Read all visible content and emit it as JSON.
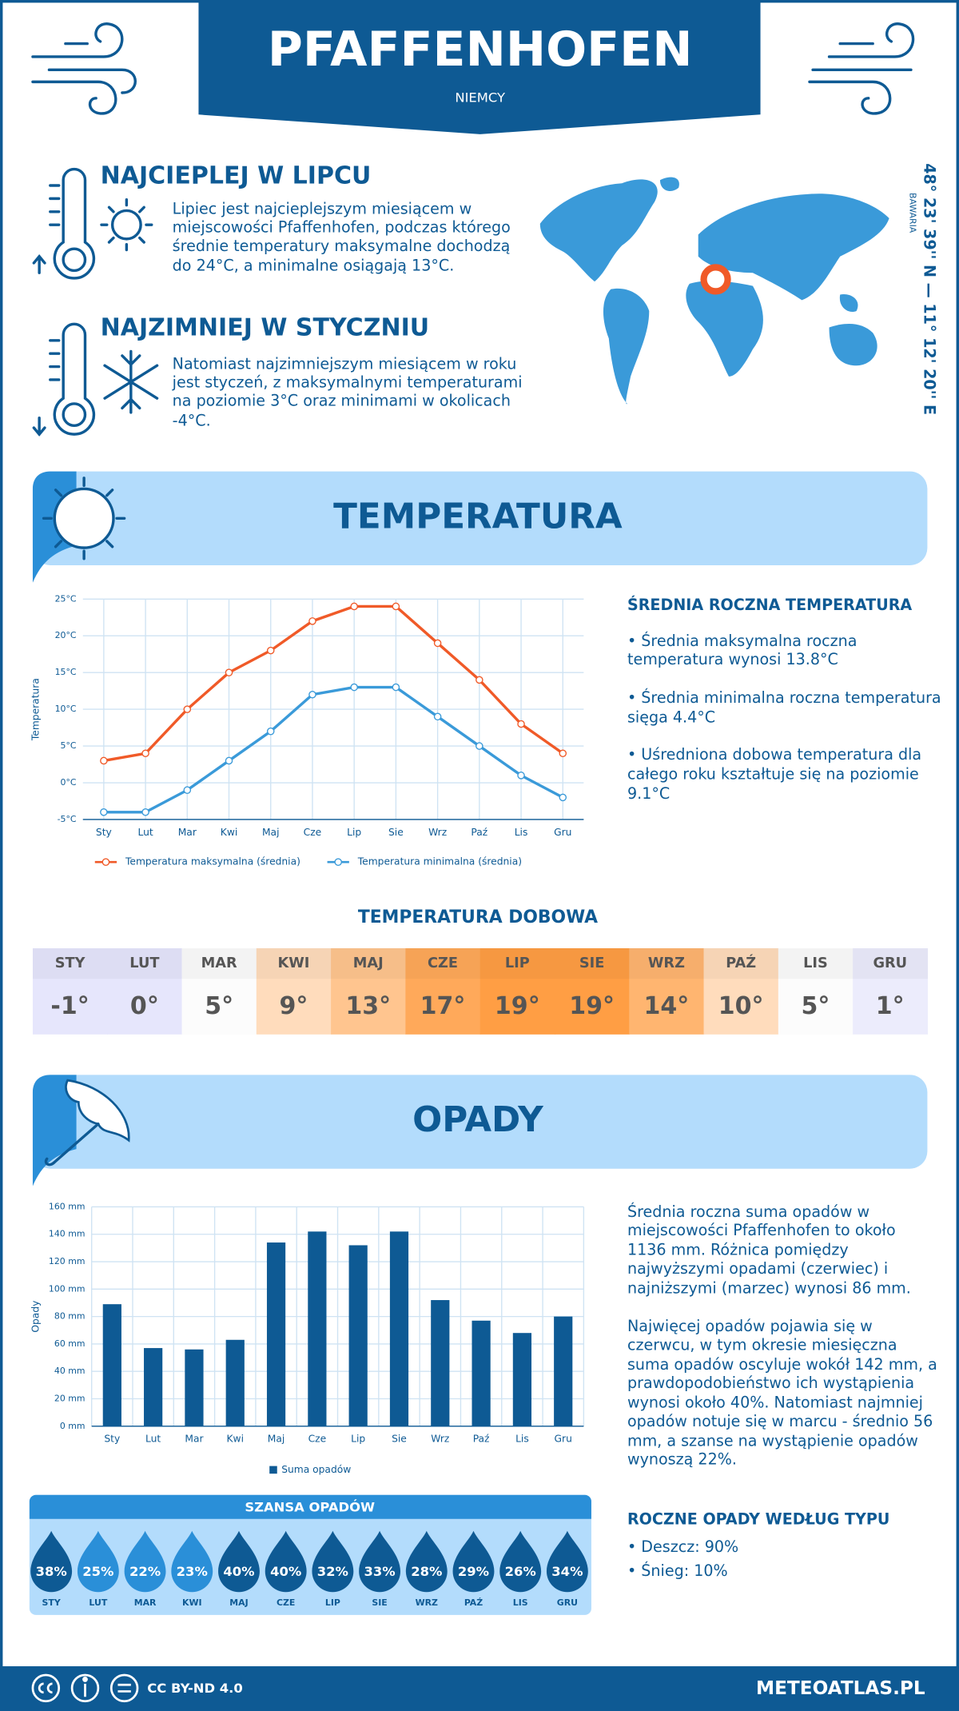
{
  "header": {
    "title": "PFAFFENHOFEN",
    "subtitle": "NIEMCY"
  },
  "warmest": {
    "title": "NAJCIEPLEJ W LIPCU",
    "lines": [
      "Lipiec jest najcieplejszym miesiącem w",
      "miejscowości Pfaffenhofen, podczas którego",
      "średnie temperatury maksymalne dochodzą",
      "do 24°C, a minimalne osiągają 13°C."
    ]
  },
  "coldest": {
    "title": "NAJZIMNIEJ W STYCZNIU",
    "lines": [
      "Natomiast najzimniejszym miesiącem w roku",
      "jest styczeń, z maksymalnymi temperaturami",
      "na poziomie 3°C oraz minimami w okolicach",
      "-4°C."
    ]
  },
  "location": {
    "coordinates": "48° 23' 39'' N — 11° 12' 20'' E",
    "region": "BAWARIA"
  },
  "temperature": {
    "title": "TEMPERATURA",
    "summary": {
      "title": "ŚREDNIA ROCZNA TEMPERATURA",
      "bullets": [
        [
          "• Średnia maksymalna roczna",
          "temperatura wynosi 13.8°C"
        ],
        [
          "• Średnia minimalna roczna temperatura",
          "sięga 4.4°C"
        ],
        [
          "• Uśredniona dobowa temperatura dla",
          "całego roku kształtuje się na poziomie",
          "9.1°C"
        ]
      ]
    }
  },
  "chart_data": [
    {
      "type": "line",
      "y_label": "Temperatura",
      "categories": [
        "Sty",
        "Lut",
        "Mar",
        "Kwi",
        "Maj",
        "Cze",
        "Lip",
        "Sie",
        "Wrz",
        "Paź",
        "Lis",
        "Gru"
      ],
      "series": [
        {
          "name": "Temperatura maksymalna (średnia)",
          "color": "#f05a28",
          "values": [
            3,
            4,
            10,
            15,
            18,
            22,
            24,
            24,
            19,
            14,
            8,
            4
          ]
        },
        {
          "name": "Temperatura minimalna (średnia)",
          "color": "#3a9ad9",
          "values": [
            -4,
            -4,
            -1,
            3,
            7,
            12,
            13,
            13,
            9,
            5,
            1,
            -2
          ]
        }
      ],
      "ylim": [
        -5,
        25
      ],
      "yticks": [
        {
          "value": -5,
          "label": "-5°C"
        },
        {
          "value": 0,
          "label": "0°C"
        },
        {
          "value": 5,
          "label": "5°C"
        },
        {
          "value": 10,
          "label": "10°C"
        },
        {
          "value": 15,
          "label": "15°C"
        },
        {
          "value": 20,
          "label": "20°C"
        },
        {
          "value": 25,
          "label": "25°C"
        }
      ],
      "grid": true
    },
    {
      "type": "bar",
      "y_label": "Opady",
      "categories": [
        "Sty",
        "Lut",
        "Mar",
        "Kwi",
        "Maj",
        "Cze",
        "Lip",
        "Sie",
        "Wrz",
        "Paź",
        "Lis",
        "Gru"
      ],
      "series": [
        {
          "name": "Suma opadów",
          "color": "#0e5a94",
          "values": [
            89,
            57,
            56,
            63,
            134,
            142,
            132,
            142,
            92,
            77,
            68,
            80
          ]
        }
      ],
      "ylim": [
        0,
        160
      ],
      "yticks": [
        {
          "value": 0,
          "label": "0 mm"
        },
        {
          "value": 20,
          "label": "20 mm"
        },
        {
          "value": 40,
          "label": "40 mm"
        },
        {
          "value": 60,
          "label": "60 mm"
        },
        {
          "value": 80,
          "label": "80 mm"
        },
        {
          "value": 100,
          "label": "100 mm"
        },
        {
          "value": 120,
          "label": "120 mm"
        },
        {
          "value": 140,
          "label": "140 mm"
        },
        {
          "value": 160,
          "label": "160 mm"
        }
      ],
      "grid": true
    }
  ],
  "daily_temperature": {
    "title": "TEMPERATURA DOBOWA",
    "months": [
      "STY",
      "LUT",
      "MAR",
      "KWI",
      "MAJ",
      "CZE",
      "LIP",
      "SIE",
      "WRZ",
      "PAŹ",
      "LIS",
      "GRU"
    ],
    "labels": [
      "-1°",
      "0°",
      "5°",
      "9°",
      "13°",
      "17°",
      "19°",
      "19°",
      "14°",
      "10°",
      "5°",
      "1°"
    ],
    "colors": [
      "#e6e6fc",
      "#e6e6fc",
      "#fcfcfc",
      "#ffdcbc",
      "#ffc58f",
      "#ffa95a",
      "#ff9e44",
      "#ff9e44",
      "#ffb570",
      "#ffdcbc",
      "#fcfcfc",
      "#ececfc"
    ]
  },
  "precipitation": {
    "title": "OPADY",
    "paragraphs": [
      [
        "Średnia roczna suma opadów w",
        "miejscowości Pfaffenhofen to około",
        "1136 mm. Różnica pomiędzy",
        "najwyższymi opadami (czerwiec) i",
        "najniższymi (marzec) wynosi 86 mm."
      ],
      [
        "Najwięcej opadów pojawia się w",
        "czerwcu, w tym okresie miesięczna",
        "suma opadów oscyluje wokół 142 mm, a",
        "prawdopodobieństwo ich wystąpienia",
        "wynosi około 40%. Natomiast najmniej",
        "opadów notuje się w marcu - średnio 56",
        "mm, a szanse na wystąpienie opadów",
        "wynoszą 22%."
      ]
    ],
    "chance": {
      "title": "SZANSA OPADÓW",
      "months": [
        "STY",
        "LUT",
        "MAR",
        "KWI",
        "MAJ",
        "CZE",
        "LIP",
        "SIE",
        "WRZ",
        "PAŹ",
        "LIS",
        "GRU"
      ],
      "labels": [
        "38%",
        "25%",
        "22%",
        "23%",
        "40%",
        "40%",
        "32%",
        "33%",
        "28%",
        "29%",
        "26%",
        "34%"
      ],
      "colors": [
        "#0e5a94",
        "#2a8fd8",
        "#2a8fd8",
        "#2a8fd8",
        "#0e5a94",
        "#0e5a94",
        "#0e5a94",
        "#0e5a94",
        "#0e5a94",
        "#0e5a94",
        "#0e5a94",
        "#0e5a94"
      ]
    },
    "by_type": {
      "title": "ROCZNE OPADY WEDŁUG TYPU",
      "items": [
        "• Deszcz: 90%",
        "• Śnieg: 10%"
      ]
    }
  },
  "footer": {
    "license": "CC BY-ND 4.0",
    "site": "METEOATLAS.PL"
  }
}
